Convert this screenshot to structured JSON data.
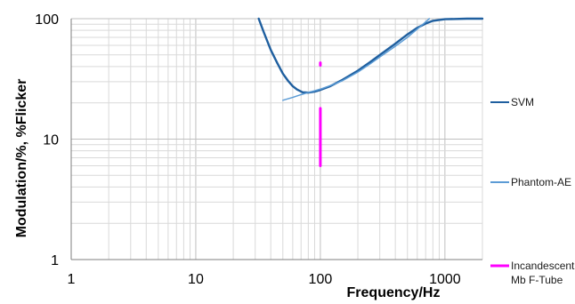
{
  "chart_data": {
    "type": "line",
    "xlabel": "Frequency/Hz",
    "ylabel": "Modulation/%, %Flicker",
    "xscale": "log",
    "yscale": "log",
    "xlim": [
      1,
      2000
    ],
    "ylim": [
      1,
      100
    ],
    "x_ticks": [
      "1",
      "10",
      "100",
      "1000"
    ],
    "y_ticks": [
      "1",
      "10",
      "100"
    ],
    "grid": true,
    "legend_position": "right",
    "series": [
      {
        "name": "SVM",
        "color": "#1f5f9f",
        "width": "thick",
        "points": [
          [
            32,
            100
          ],
          [
            35,
            78
          ],
          [
            40,
            55
          ],
          [
            45,
            43
          ],
          [
            50,
            35
          ],
          [
            55,
            30.5
          ],
          [
            60,
            27.5
          ],
          [
            65,
            25.8
          ],
          [
            72,
            24.5
          ],
          [
            80,
            24.3
          ],
          [
            90,
            24.8
          ],
          [
            100,
            25.6
          ],
          [
            120,
            27.5
          ],
          [
            150,
            31
          ],
          [
            200,
            37
          ],
          [
            250,
            43.5
          ],
          [
            300,
            50
          ],
          [
            400,
            62
          ],
          [
            500,
            74
          ],
          [
            600,
            84
          ],
          [
            700,
            91
          ],
          [
            800,
            96
          ],
          [
            1000,
            99
          ],
          [
            1500,
            100
          ],
          [
            2000,
            100
          ]
        ]
      },
      {
        "name": "Phantom-AE",
        "color": "#5b9bd5",
        "width": "thin",
        "points": [
          [
            50,
            21
          ],
          [
            60,
            22.2
          ],
          [
            70,
            23.4
          ],
          [
            80,
            24.4
          ],
          [
            90,
            25.2
          ],
          [
            100,
            26
          ],
          [
            120,
            27.8
          ],
          [
            150,
            30.5
          ],
          [
            200,
            36
          ],
          [
            250,
            42
          ],
          [
            300,
            48
          ],
          [
            400,
            59
          ],
          [
            500,
            70
          ],
          [
            600,
            82
          ],
          [
            700,
            94
          ],
          [
            750,
            100
          ]
        ]
      },
      {
        "name": "Incandescent Mb F-Tube",
        "color": "#ff00ff",
        "width": "thick",
        "segments": [
          [
            [
              100,
              43
            ],
            [
              100,
              41
            ]
          ],
          [
            [
              100,
              18
            ],
            [
              100,
              6
            ]
          ]
        ]
      }
    ]
  },
  "legend": [
    {
      "label": "SVM",
      "lines": [
        "SVM"
      ],
      "color": "#1f5f9f"
    },
    {
      "label": "Phantom-AE",
      "lines": [
        "Phantom-AE"
      ],
      "color": "#5b9bd5"
    },
    {
      "label": "Incandescent Mb F-Tube",
      "lines": [
        "Incandescent",
        "Mb F-Tube"
      ],
      "color": "#ff00ff"
    }
  ]
}
